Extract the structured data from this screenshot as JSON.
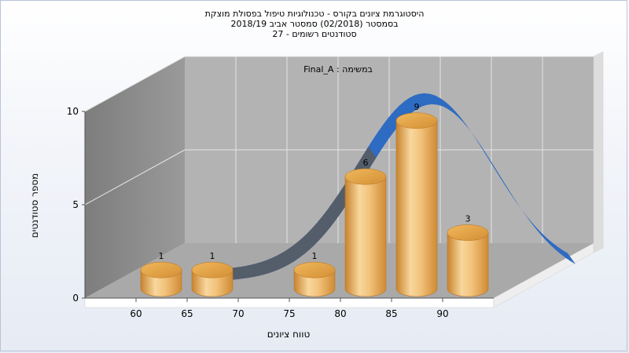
{
  "chart_data": {
    "type": "bar",
    "title_lines": [
      "היסטוגרמת ציונים בקורס - טכנולוגיות טיפול בפסולת מוצקת",
      "בסמסטר  (02/2018)  סמסטר אביב 2018/19",
      "סטודנטים רשומים - 27"
    ],
    "subtitle": "Final_A : במשימה",
    "xlabel": "טווח ציונים",
    "ylabel": "מספר סטודנטים",
    "x_ticks": [
      "60",
      "65",
      "70",
      "75",
      "80",
      "85",
      "90"
    ],
    "y_ticks": [
      "0",
      "5",
      "10"
    ],
    "ylim": [
      0,
      10
    ],
    "bars": [
      {
        "x": 60,
        "value": 1,
        "label": "1"
      },
      {
        "x": 65,
        "value": 1,
        "label": "1"
      },
      {
        "x": 75,
        "value": 1,
        "label": "1"
      },
      {
        "x": 80,
        "value": 6,
        "label": "6"
      },
      {
        "x": 85,
        "value": 9,
        "label": "9"
      },
      {
        "x": 90,
        "value": 3,
        "label": "3"
      }
    ],
    "curve_type": "normal distribution ribbon",
    "colors": {
      "bar": "#e7a84a",
      "curve": "#2e6bc2",
      "curve_back": "#5a5a5a",
      "left_wall": "#8c8c8c",
      "back_wall": "#b3b3b3",
      "floor": "#a9a9a9"
    }
  }
}
